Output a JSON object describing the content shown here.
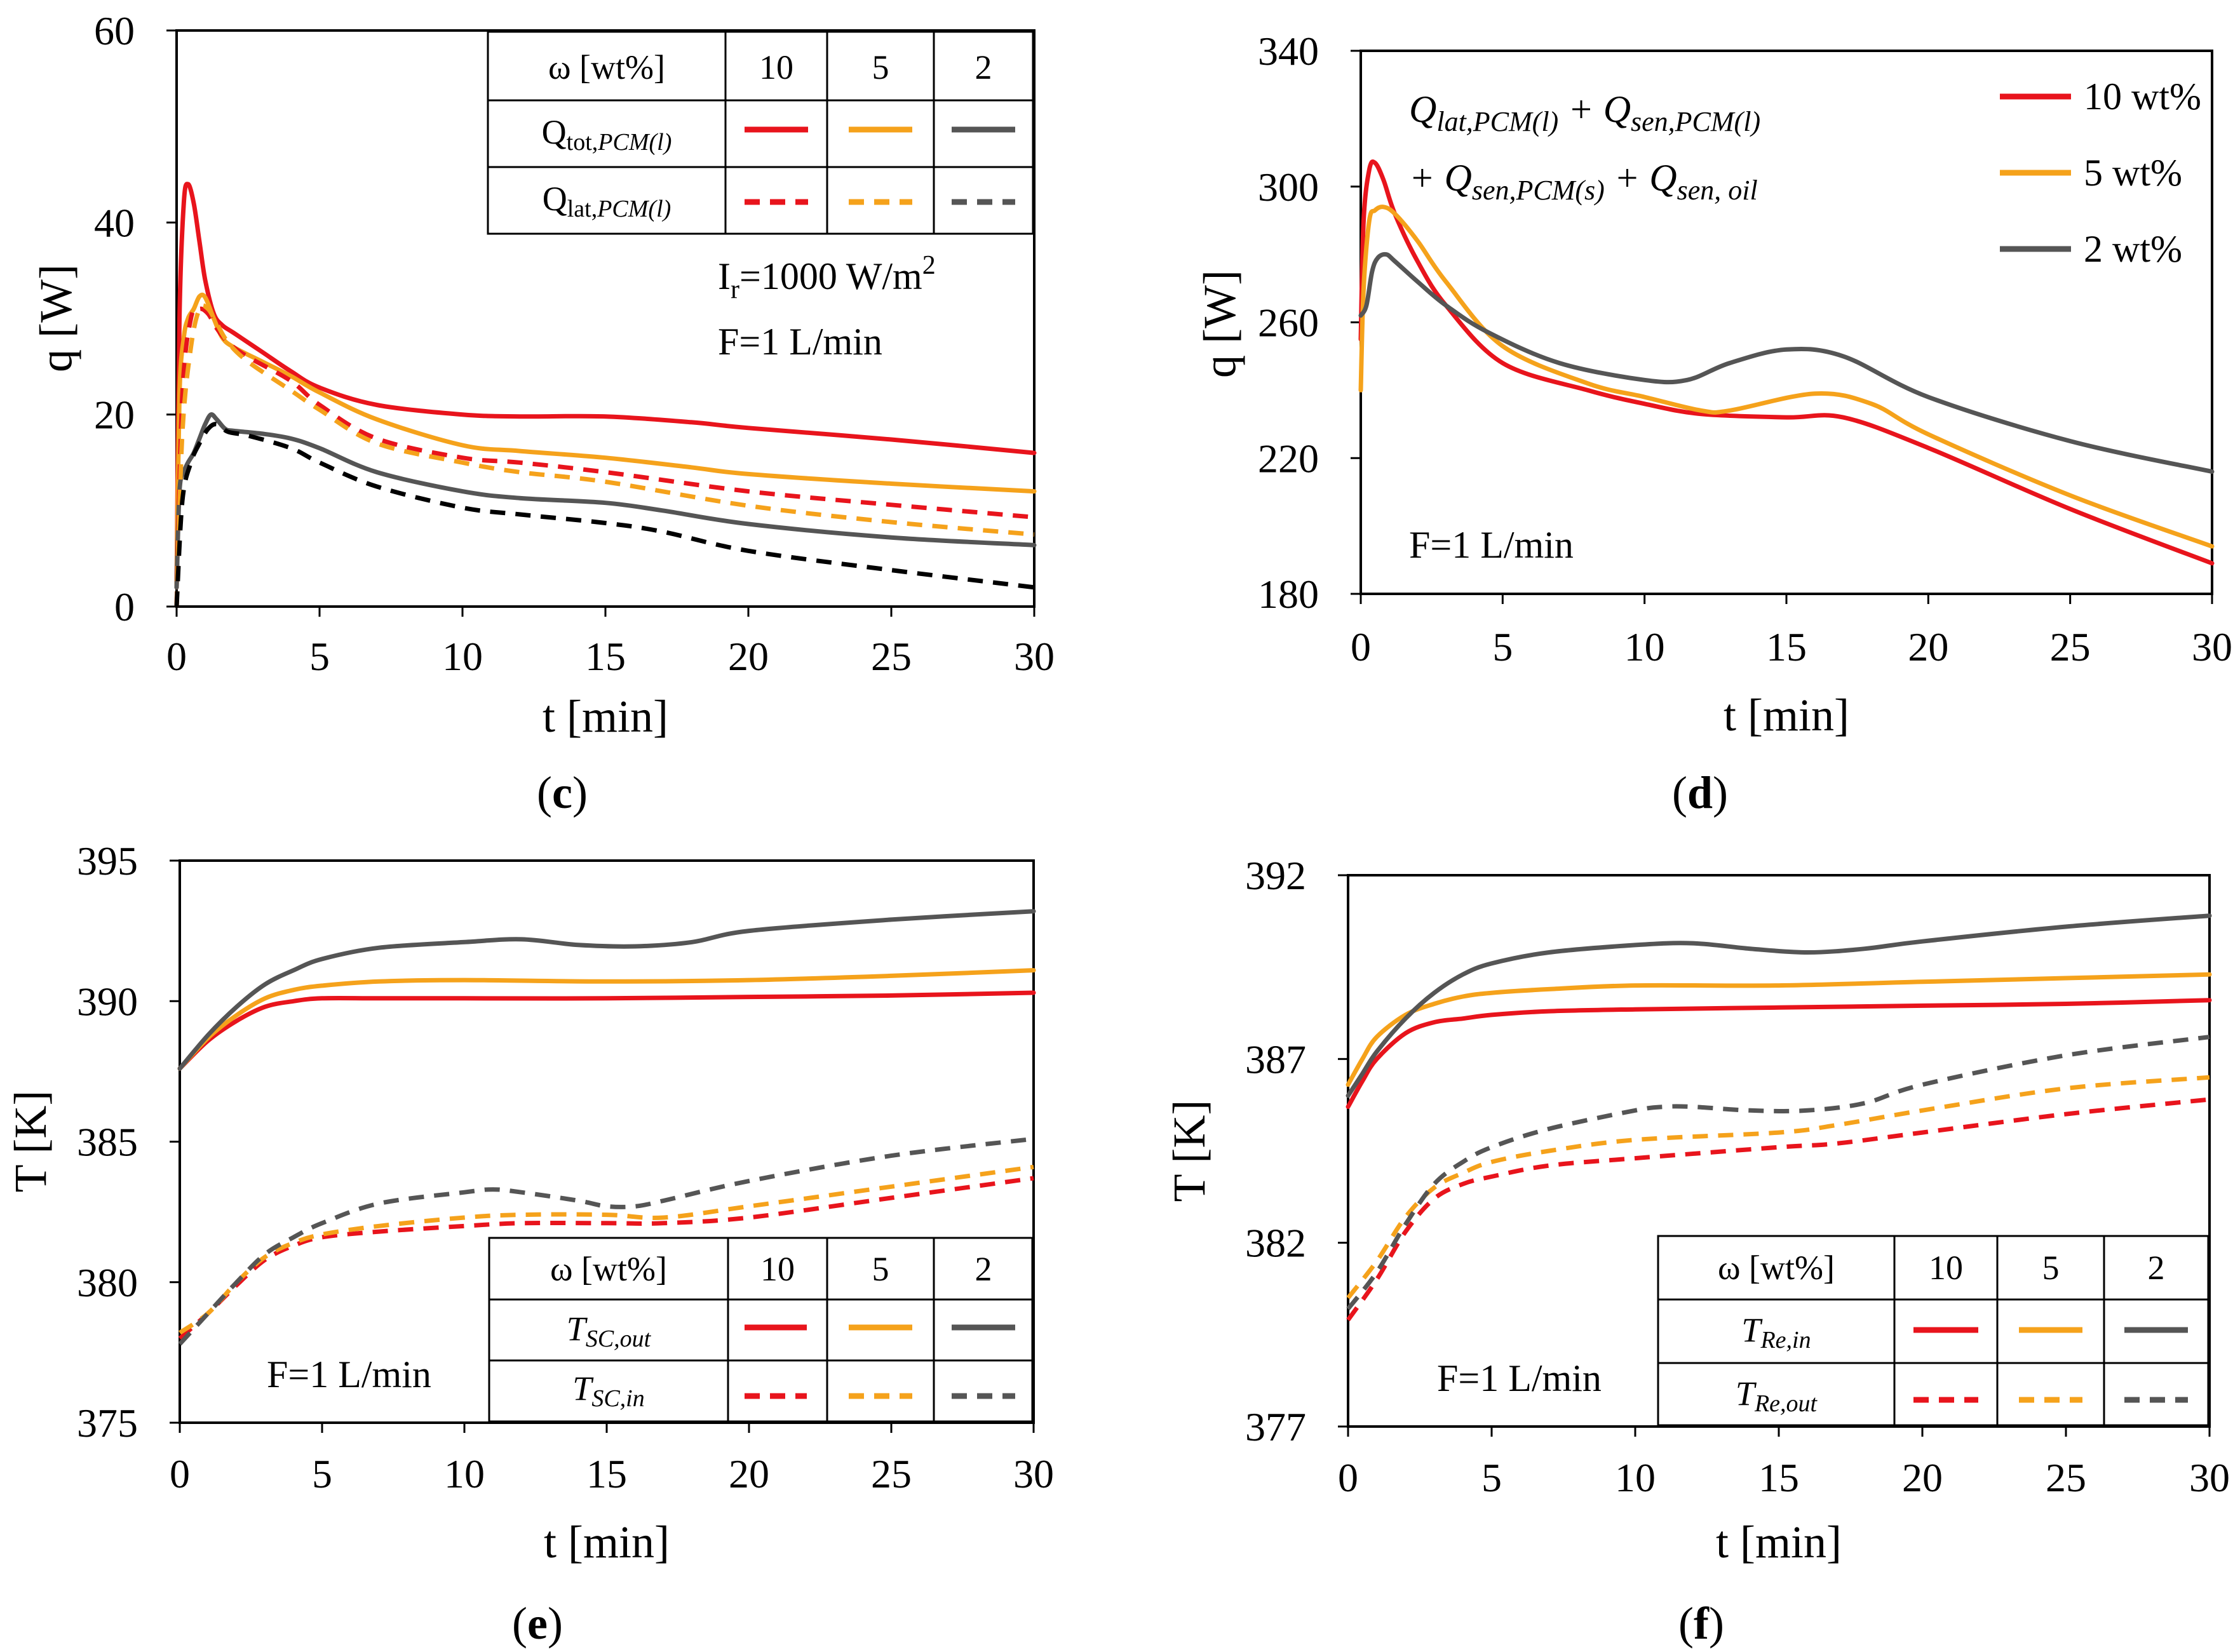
{
  "colors": {
    "red": "#e8141c",
    "orange": "#f5a21b",
    "gray": "#555555",
    "black": "#000000"
  },
  "chart_data": [
    {
      "id": "c",
      "type": "line",
      "panel_label": "c",
      "xlabel": "t [min]",
      "ylabel": "q [W]",
      "xlim": [
        0,
        30
      ],
      "ylim": [
        0,
        60
      ],
      "xticks": [
        "0",
        "5",
        "10",
        "15",
        "20",
        "25",
        "30"
      ],
      "yticks": [
        "0",
        "20",
        "40",
        "60"
      ],
      "annotations": [
        "I",
        "r",
        "=1000 W/m",
        "2",
        "F=1 L/min"
      ],
      "legend": {
        "position": "top-right",
        "header": [
          "ω  [wt%]",
          "10",
          "5",
          "2"
        ],
        "rows": [
          {
            "label": "Q",
            "sub": "tot,",
            "subit": "PCM(l)",
            "style": "solid"
          },
          {
            "label": "Q",
            "sub": "lat,",
            "subit": "PCM(l)",
            "style": "dashed"
          }
        ]
      },
      "series": [
        {
          "name": "Q_tot,PCM(l) 10 wt%",
          "color": "#e8141c",
          "dash": false,
          "x": [
            0,
            0.1,
            0.25,
            0.4,
            0.6,
            0.8,
            1.0,
            1.3,
            1.6,
            2,
            3,
            4,
            5,
            7,
            10,
            12,
            15,
            18,
            20,
            25,
            30
          ],
          "y": [
            2,
            30,
            42,
            44,
            42,
            38,
            34,
            30.5,
            29.3,
            28.5,
            26.5,
            24.5,
            22.8,
            21,
            20,
            19.8,
            19.8,
            19.2,
            18.6,
            17.4,
            16
          ]
        },
        {
          "name": "Q_tot,PCM(l) 5 wt%",
          "color": "#f5a21b",
          "dash": false,
          "x": [
            0,
            0.1,
            0.25,
            0.4,
            0.6,
            0.8,
            1.0,
            1.3,
            1.6,
            2,
            3,
            4,
            5,
            7,
            10,
            12,
            15,
            18,
            20,
            25,
            30
          ],
          "y": [
            2,
            22,
            28,
            30,
            31,
            32.3,
            32.2,
            30,
            28,
            27,
            25.5,
            24,
            22.3,
            19.5,
            16.8,
            16.2,
            15.5,
            14.5,
            13.8,
            12.8,
            12
          ]
        },
        {
          "name": "Q_tot,PCM(l) 2 wt%",
          "color": "#555555",
          "dash": false,
          "x": [
            0,
            0.1,
            0.25,
            0.4,
            0.6,
            0.8,
            1.0,
            1.2,
            1.4,
            1.7,
            2,
            3,
            4,
            5,
            7,
            10,
            12,
            15,
            17,
            20,
            25,
            30
          ],
          "y": [
            2,
            12,
            14,
            15,
            16,
            17.5,
            19,
            20,
            19.5,
            18.5,
            18.3,
            18,
            17.5,
            16.5,
            14,
            12,
            11.3,
            10.8,
            10,
            8.6,
            7.2,
            6.4
          ]
        },
        {
          "name": "Q_lat,PCM(l) 10 wt%",
          "color": "#e8141c",
          "dash": true,
          "x": [
            0,
            0.2,
            0.5,
            0.8,
            1.1,
            1.4,
            1.8,
            2.5,
            4,
            5,
            7,
            10,
            12,
            15,
            20,
            25,
            30
          ],
          "y": [
            0,
            22,
            30,
            31,
            30.5,
            29,
            27.5,
            26,
            23.5,
            21,
            17.5,
            15.5,
            15,
            14,
            12,
            10.6,
            9.3
          ]
        },
        {
          "name": "Q_lat,PCM(l) 5 wt%",
          "color": "#f5a21b",
          "dash": true,
          "x": [
            0,
            0.2,
            0.5,
            0.8,
            1.1,
            1.4,
            1.8,
            2.5,
            4,
            5,
            7,
            10,
            12,
            15,
            20,
            25,
            30
          ],
          "y": [
            0,
            18,
            27,
            31,
            31,
            29.5,
            27.5,
            25.5,
            22.5,
            20.5,
            17,
            15,
            14,
            13,
            10.5,
            8.8,
            7.5
          ]
        },
        {
          "name": "Q_lat,PCM(l) 2 wt%",
          "color": "#000000",
          "dash": true,
          "x": [
            0,
            0.2,
            0.5,
            0.8,
            1.1,
            1.4,
            1.8,
            2.5,
            4,
            5,
            7,
            10,
            12,
            15,
            17,
            20,
            25,
            30
          ],
          "y": [
            0,
            11,
            15,
            17,
            18.5,
            19,
            18.2,
            17.8,
            16.5,
            15,
            12.5,
            10.3,
            9.6,
            8.7,
            7.8,
            5.8,
            3.8,
            2
          ]
        }
      ]
    },
    {
      "id": "d",
      "type": "line",
      "panel_label": "d",
      "xlabel": "t [min]",
      "ylabel": "q [W]",
      "xlim": [
        0,
        30
      ],
      "ylim": [
        180,
        340
      ],
      "xticks": [
        "0",
        "5",
        "10",
        "15",
        "20",
        "25",
        "30"
      ],
      "yticks": [
        "180",
        "220",
        "260",
        "300",
        "340"
      ],
      "annotations": [
        "Q",
        "lat,PCM(l)",
        " + Q",
        "sen,PCM(l)",
        "+ Q",
        "sen,PCM(s)",
        " + Q",
        "sen, oil",
        "F=1 L/min"
      ],
      "legend": {
        "position": "top-right",
        "entries": [
          "10 wt%",
          "5 wt%",
          "2 wt%"
        ]
      },
      "series": [
        {
          "name": "10 wt%",
          "color": "#e8141c",
          "dash": false,
          "x": [
            0,
            0.1,
            0.3,
            0.5,
            0.8,
            1.2,
            2,
            3,
            5,
            8,
            10,
            12,
            15,
            17,
            20,
            25,
            30
          ],
          "y": [
            255,
            290,
            305,
            307,
            302,
            292,
            278,
            265,
            248,
            240,
            236,
            233,
            232,
            232,
            223,
            205,
            189
          ]
        },
        {
          "name": "5 wt%",
          "color": "#f5a21b",
          "dash": false,
          "x": [
            0,
            0.1,
            0.3,
            0.5,
            0.8,
            1.2,
            2,
            3,
            5,
            8,
            10,
            12,
            13,
            16,
            18,
            20,
            25,
            30
          ],
          "y": [
            240,
            270,
            290,
            293,
            294,
            292,
            284,
            272,
            253,
            242,
            238,
            234,
            234,
            239,
            236,
            227,
            209,
            194
          ]
        },
        {
          "name": "2 wt%",
          "color": "#555555",
          "dash": false,
          "x": [
            0,
            0.2,
            0.4,
            0.6,
            0.9,
            1.2,
            2,
            3,
            4.5,
            7,
            10,
            11.5,
            13,
            15,
            17,
            20,
            25,
            30
          ],
          "y": [
            262,
            265,
            275,
            279,
            280,
            278,
            272,
            265,
            257,
            248,
            243,
            243,
            248,
            252,
            250,
            238,
            225,
            216
          ]
        }
      ]
    },
    {
      "id": "e",
      "type": "line",
      "panel_label": "e",
      "xlabel": "t [min]",
      "ylabel": "T [K]",
      "xlim": [
        0,
        30
      ],
      "ylim": [
        375,
        395
      ],
      "xticks": [
        "0",
        "5",
        "10",
        "15",
        "20",
        "25",
        "30"
      ],
      "yticks": [
        "375",
        "380",
        "385",
        "390",
        "395"
      ],
      "annotations": [
        "F=1 L/min"
      ],
      "legend": {
        "position": "bottom-right",
        "header": [
          "ω  [wt%]",
          "10",
          "5",
          "2"
        ],
        "rows": [
          {
            "label": "T",
            "subit": "SC,out",
            "style": "solid"
          },
          {
            "label": "T",
            "subit": "SC,in",
            "style": "dashed"
          }
        ]
      },
      "series": [
        {
          "name": "T_SC,out 10 wt%",
          "color": "#e8141c",
          "dash": false,
          "x": [
            0,
            1,
            2,
            3,
            4,
            5,
            7,
            10,
            15,
            20,
            25,
            30
          ],
          "y": [
            387.6,
            388.6,
            389.3,
            389.8,
            390.0,
            390.1,
            390.1,
            390.1,
            390.1,
            390.15,
            390.2,
            390.3
          ]
        },
        {
          "name": "T_SC,out 5 wt%",
          "color": "#f5a21b",
          "dash": false,
          "x": [
            0,
            1,
            2,
            3,
            4,
            5,
            7,
            10,
            15,
            20,
            25,
            30
          ],
          "y": [
            387.6,
            388.7,
            389.5,
            390.1,
            390.4,
            390.55,
            390.7,
            390.75,
            390.7,
            390.75,
            390.9,
            391.1
          ]
        },
        {
          "name": "T_SC,out 2 wt%",
          "color": "#555555",
          "dash": false,
          "x": [
            0,
            1,
            2,
            3,
            4,
            5,
            7,
            10,
            12,
            14,
            16,
            18,
            20,
            25,
            30
          ],
          "y": [
            387.6,
            388.8,
            389.8,
            390.6,
            391.1,
            391.5,
            391.9,
            392.1,
            392.2,
            392.0,
            391.95,
            392.1,
            392.5,
            392.9,
            393.2
          ]
        },
        {
          "name": "T_SC,in 10 wt%",
          "color": "#e8141c",
          "dash": true,
          "x": [
            0,
            1,
            2,
            3,
            4,
            5,
            7,
            10,
            12,
            15,
            17,
            20,
            25,
            30
          ],
          "y": [
            378.0,
            378.9,
            379.9,
            380.8,
            381.3,
            381.6,
            381.8,
            382.0,
            382.1,
            382.1,
            382.1,
            382.3,
            383.0,
            383.7
          ]
        },
        {
          "name": "T_SC,in 5 wt%",
          "color": "#f5a21b",
          "dash": true,
          "x": [
            0,
            1,
            2,
            3,
            4,
            5,
            7,
            10,
            12,
            15,
            17,
            20,
            25,
            30
          ],
          "y": [
            378.2,
            378.9,
            380.0,
            380.9,
            381.4,
            381.7,
            382.0,
            382.3,
            382.4,
            382.4,
            382.3,
            382.7,
            383.4,
            384.1
          ]
        },
        {
          "name": "T_SC,in 2 wt%",
          "color": "#555555",
          "dash": true,
          "x": [
            0,
            1,
            2,
            3,
            4,
            5,
            7,
            10,
            11,
            12,
            14,
            15,
            16,
            17,
            20,
            25,
            30
          ],
          "y": [
            377.8,
            378.9,
            380.0,
            381.0,
            381.6,
            382.1,
            382.8,
            383.2,
            383.3,
            383.2,
            382.9,
            382.7,
            382.7,
            382.9,
            383.6,
            384.5,
            385.1
          ]
        }
      ]
    },
    {
      "id": "f",
      "type": "line",
      "panel_label": "f",
      "xlabel": "t [min]",
      "ylabel": "T [K]",
      "xlim": [
        0,
        30
      ],
      "ylim": [
        377,
        392
      ],
      "xticks": [
        "0",
        "5",
        "10",
        "15",
        "20",
        "25",
        "30"
      ],
      "yticks": [
        "377",
        "382",
        "387",
        "392"
      ],
      "annotations": [
        "F=1 L/min"
      ],
      "legend": {
        "position": "bottom-right",
        "header": [
          "ω  [wt%]",
          "10",
          "5",
          "2"
        ],
        "rows": [
          {
            "label": "T",
            "subit": "Re,in",
            "style": "solid"
          },
          {
            "label": "T",
            "subit": "Re,out",
            "style": "dashed"
          }
        ]
      },
      "series": [
        {
          "name": "T_Re,in 10 wt%",
          "color": "#e8141c",
          "dash": false,
          "x": [
            0,
            0.5,
            1,
            2,
            3,
            4,
            5,
            7,
            10,
            15,
            20,
            25,
            30
          ],
          "y": [
            385.7,
            386.4,
            387.0,
            387.7,
            388.0,
            388.1,
            388.2,
            388.3,
            388.35,
            388.4,
            388.45,
            388.5,
            388.6
          ]
        },
        {
          "name": "T_Re,in 5 wt%",
          "color": "#f5a21b",
          "dash": false,
          "x": [
            0,
            0.5,
            1,
            2,
            3,
            4,
            5,
            7,
            10,
            15,
            20,
            25,
            30
          ],
          "y": [
            386.3,
            387.0,
            387.6,
            388.2,
            388.5,
            388.7,
            388.8,
            388.9,
            389.0,
            389.0,
            389.1,
            389.2,
            389.3
          ]
        },
        {
          "name": "T_Re,in 2 wt%",
          "color": "#555555",
          "dash": false,
          "x": [
            0,
            0.5,
            1,
            2,
            3,
            4,
            5,
            7,
            10,
            12,
            14,
            16,
            18,
            20,
            25,
            30
          ],
          "y": [
            386.0,
            386.6,
            387.2,
            388.1,
            388.8,
            389.3,
            389.6,
            389.9,
            390.1,
            390.15,
            390.0,
            389.9,
            390.0,
            390.2,
            390.6,
            390.9
          ]
        },
        {
          "name": "T_Re,out 10 wt%",
          "color": "#e8141c",
          "dash": true,
          "x": [
            0,
            1,
            2,
            3,
            4,
            5,
            7,
            10,
            15,
            17,
            20,
            25,
            30
          ],
          "y": [
            379.9,
            381.0,
            382.3,
            383.2,
            383.6,
            383.8,
            384.1,
            384.3,
            384.6,
            384.7,
            385.0,
            385.5,
            385.9
          ]
        },
        {
          "name": "T_Re,out 5 wt%",
          "color": "#f5a21b",
          "dash": true,
          "x": [
            0,
            1,
            2,
            3,
            4,
            5,
            7,
            10,
            15,
            17,
            20,
            25,
            30
          ],
          "y": [
            380.5,
            381.5,
            382.7,
            383.5,
            383.9,
            384.2,
            384.5,
            384.8,
            385.0,
            385.2,
            385.6,
            386.2,
            386.5
          ]
        },
        {
          "name": "T_Re,out 2 wt%",
          "color": "#555555",
          "dash": true,
          "x": [
            0,
            1,
            2,
            3,
            4,
            5,
            7,
            10,
            11,
            12,
            14,
            16,
            18,
            20,
            25,
            30
          ],
          "y": [
            380.2,
            381.2,
            382.5,
            383.6,
            384.2,
            384.6,
            385.1,
            385.6,
            385.7,
            385.7,
            385.6,
            385.6,
            385.8,
            386.3,
            387.1,
            387.6
          ]
        }
      ]
    }
  ]
}
